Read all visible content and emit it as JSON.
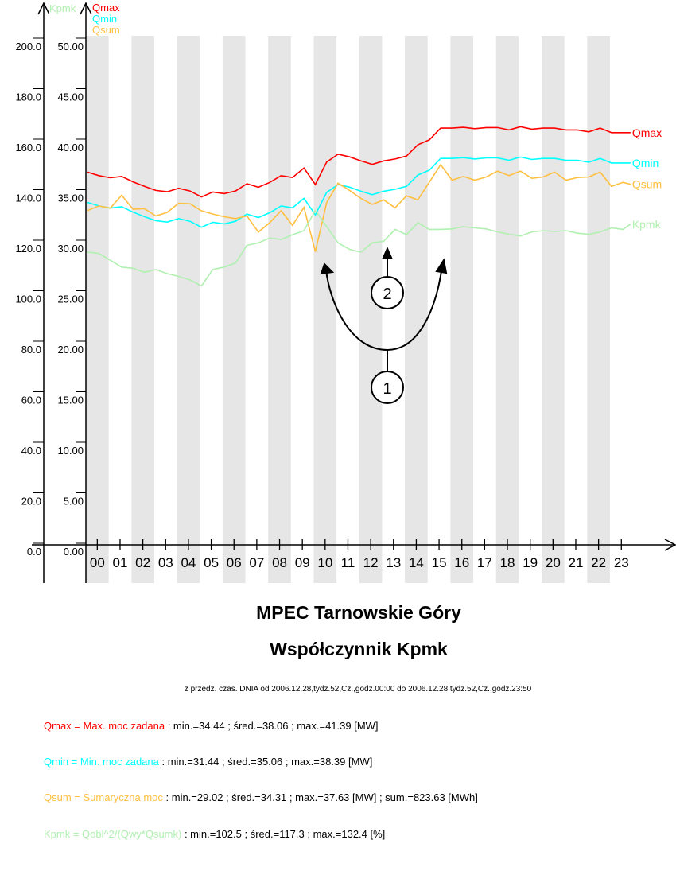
{
  "chart_data": {
    "type": "line",
    "title": "MPEC Tarnowskie Góry",
    "subtitle": "Współczynnik Kpmk",
    "period": "z przedz. czas. DNIA od 2006.12.28,tydz.52,Cz.,godz.00:00 do 2006.12.28,tydz.52,Cz.,godz.23:50",
    "left_axis": {
      "label": "Kpmk",
      "ylim": [
        0,
        200
      ],
      "ticks": [
        "0.0",
        "20.0",
        "40.0",
        "60.0",
        "80.0",
        "100.0",
        "120.0",
        "140.0",
        "160.0",
        "180.0",
        "200.0"
      ]
    },
    "right_axis": {
      "labels": [
        "Qmax",
        "Qmin",
        "Qsum"
      ],
      "ylim": [
        0,
        50
      ],
      "ticks": [
        "0.00",
        "5.00",
        "10.00",
        "15.00",
        "20.00",
        "25.00",
        "30.00",
        "35.00",
        "40.00",
        "45.00",
        "50.00"
      ]
    },
    "x_ticks": [
      "00",
      "01",
      "02",
      "03",
      "04",
      "05",
      "06",
      "07",
      "08",
      "09",
      "10",
      "11",
      "12",
      "13",
      "14",
      "15",
      "16",
      "17",
      "18",
      "19",
      "20",
      "21",
      "22",
      "23"
    ],
    "grid": "alternating hour bands",
    "x": [
      "00:00",
      "00:30",
      "01:00",
      "01:30",
      "02:00",
      "02:30",
      "03:00",
      "03:30",
      "04:00",
      "04:30",
      "05:00",
      "05:30",
      "06:00",
      "06:30",
      "07:00",
      "07:30",
      "08:00",
      "08:30",
      "09:00",
      "09:30",
      "10:00",
      "10:30",
      "11:00",
      "11:30",
      "12:00",
      "12:30",
      "13:00",
      "13:30",
      "14:00",
      "14:30",
      "15:00",
      "15:30",
      "16:00",
      "16:30",
      "17:00",
      "17:30",
      "18:00",
      "18:30",
      "19:00",
      "19:30",
      "20:00",
      "20:30",
      "21:00",
      "21:30",
      "22:00",
      "22:30",
      "23:00",
      "23:30",
      "23:50"
    ],
    "series": [
      {
        "name": "Qmax",
        "axis": "right",
        "color": "#ff0000",
        "values": [
          36.9,
          36.55,
          36.34,
          36.47,
          35.94,
          35.49,
          35.09,
          34.95,
          35.3,
          35.03,
          34.44,
          34.93,
          34.77,
          35.03,
          35.75,
          35.4,
          35.88,
          36.55,
          36.36,
          37.3,
          35.67,
          37.9,
          38.67,
          38.41,
          38.01,
          37.66,
          38.01,
          38.2,
          38.49,
          39.61,
          40.09,
          41.25,
          41.25,
          41.33,
          41.2,
          41.31,
          41.31,
          41.07,
          41.39,
          41.15,
          41.25,
          41.25,
          41.07,
          41.07,
          40.88,
          41.25,
          40.8,
          40.8,
          40.8
        ]
      },
      {
        "name": "Qmin",
        "axis": "right",
        "color": "#00ffff",
        "values": [
          33.9,
          33.55,
          33.34,
          33.47,
          32.94,
          32.49,
          32.09,
          31.95,
          32.3,
          32.03,
          31.44,
          31.93,
          31.77,
          32.03,
          32.75,
          32.4,
          32.88,
          33.55,
          33.36,
          34.3,
          32.67,
          34.9,
          35.67,
          35.41,
          35.01,
          34.66,
          35.01,
          35.2,
          35.49,
          36.61,
          37.09,
          38.25,
          38.25,
          38.33,
          38.2,
          38.31,
          38.31,
          38.07,
          38.39,
          38.15,
          38.25,
          38.25,
          38.07,
          38.07,
          37.88,
          38.25,
          37.8,
          37.8,
          37.8
        ]
      },
      {
        "name": "Qsum",
        "axis": "right",
        "color": "#ffbf40",
        "values": [
          33.09,
          33.55,
          33.33,
          34.61,
          33.23,
          33.28,
          32.56,
          32.91,
          33.81,
          33.76,
          33.07,
          32.75,
          32.48,
          32.3,
          32.56,
          30.96,
          31.9,
          33.09,
          31.63,
          33.41,
          29.02,
          33.89,
          35.8,
          35.09,
          34.29,
          33.7,
          34.15,
          33.36,
          34.55,
          34.15,
          35.9,
          37.63,
          36.1,
          36.47,
          36.1,
          36.42,
          37.0,
          36.55,
          37.0,
          36.28,
          36.42,
          36.9,
          36.1,
          36.36,
          36.42,
          36.9,
          35.49,
          35.88,
          35.7
        ]
      },
      {
        "name": "Kpmk",
        "axis": "left",
        "color": "#b0f0b0",
        "values": [
          115.9,
          115.4,
          112.7,
          110.0,
          109.5,
          107.9,
          109.0,
          107.4,
          106.3,
          104.9,
          102.5,
          109.0,
          110.0,
          111.6,
          118.6,
          119.6,
          121.5,
          120.9,
          122.8,
          124.4,
          132.4,
          126.0,
          119.6,
          117.0,
          115.9,
          119.6,
          120.2,
          124.9,
          122.8,
          127.6,
          124.9,
          124.9,
          125.1,
          126.0,
          125.5,
          125.1,
          123.9,
          123.0,
          122.3,
          123.9,
          124.4,
          124.1,
          124.4,
          123.4,
          123.0,
          123.9,
          125.5,
          124.9,
          127.0
        ]
      }
    ],
    "annotations": [
      "1",
      "2"
    ]
  },
  "legend": [
    {
      "name": "Qmax = Max. moc zadana",
      "stats": " : min.=34.44 ; śred.=38.06 ; max.=41.39 [MW]",
      "color": "#ff0000"
    },
    {
      "name": "Qmin = Min. moc zadana",
      "stats": " : min.=31.44 ; śred.=35.06 ; max.=38.39 [MW]",
      "color": "#00ffff"
    },
    {
      "name": "Qsum = Sumaryczna moc",
      "stats": " : min.=29.02 ; śred.=34.31 ; max.=37.63 [MW] ; sum.=823.63 [MWh]",
      "color": "#ffbf40"
    },
    {
      "name": "Kpmk = Qobl^2/(Qwy*Qsumk)",
      "stats": " : min.=102.5 ; śred.=117.3 ; max.=132.4 [%]",
      "color": "#b0f0b0"
    }
  ]
}
